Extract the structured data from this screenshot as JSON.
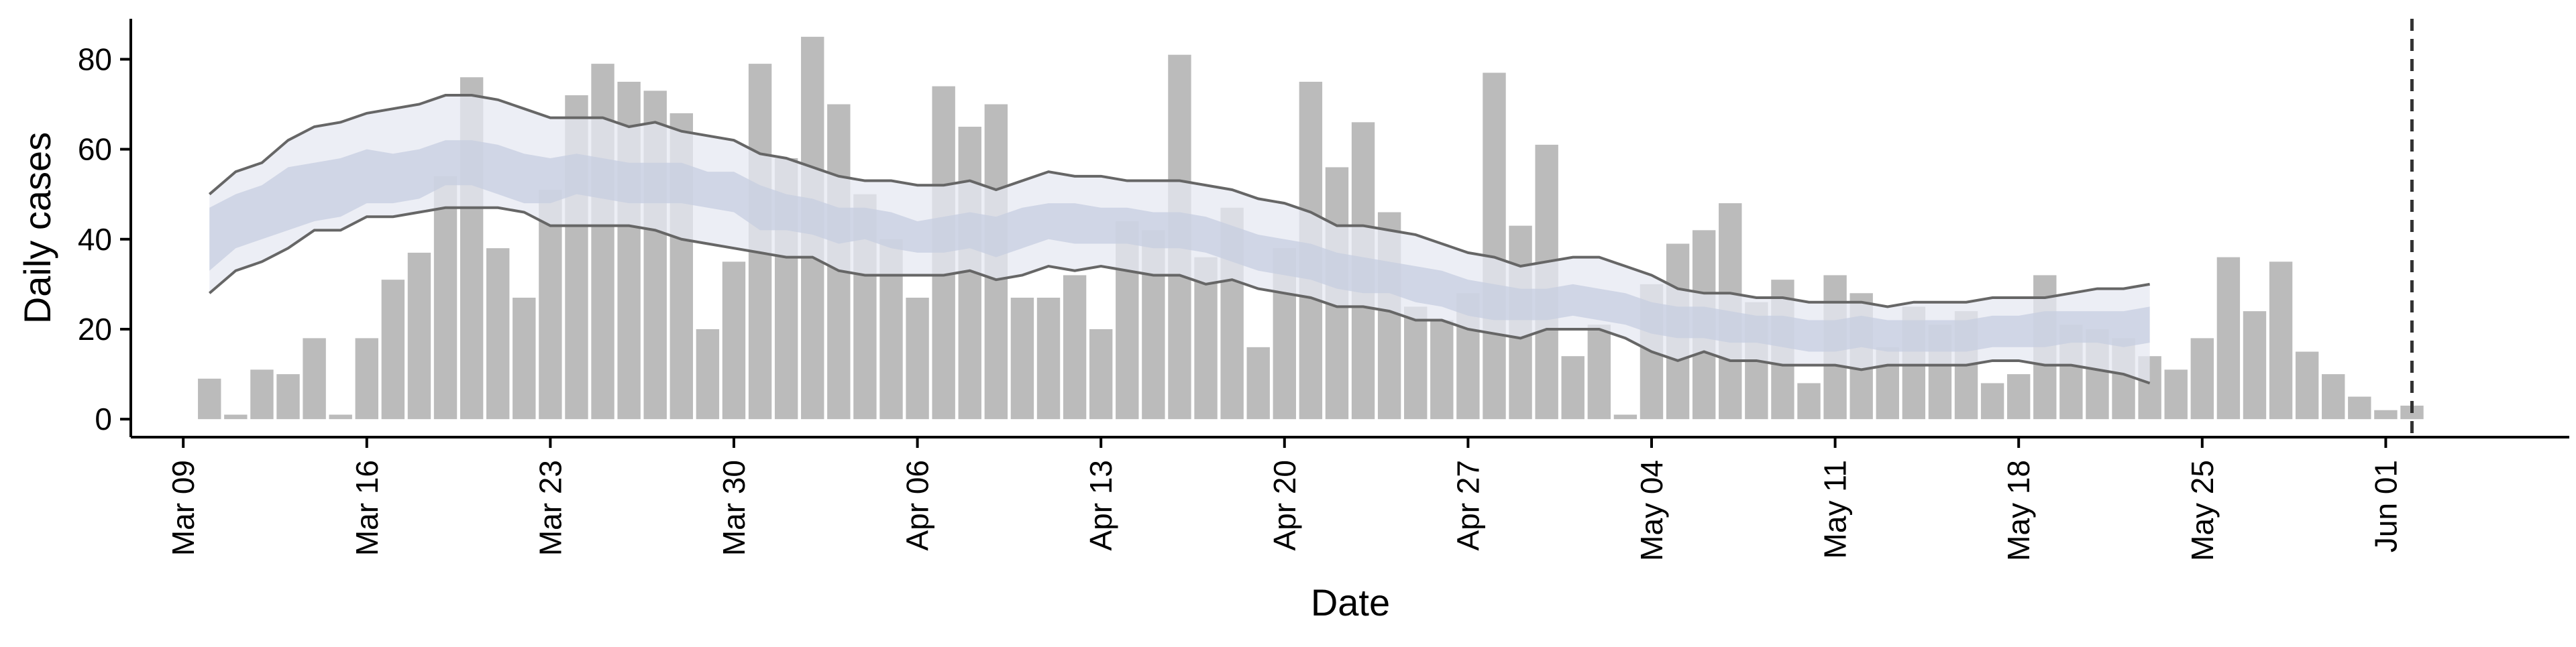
{
  "chart_data": {
    "type": "bar",
    "xlabel": "Date",
    "ylabel": "Daily cases",
    "ylim": [
      -4,
      89
    ],
    "xlim": [
      "2020-03-07",
      "2020-06-08"
    ],
    "y_ticks": [
      0,
      20,
      40,
      60,
      80
    ],
    "x_ticks": [
      {
        "date": "2020-03-09",
        "label": "Mar 09"
      },
      {
        "date": "2020-03-16",
        "label": "Mar 16"
      },
      {
        "date": "2020-03-23",
        "label": "Mar 23"
      },
      {
        "date": "2020-03-30",
        "label": "Mar 30"
      },
      {
        "date": "2020-04-06",
        "label": "Apr 06"
      },
      {
        "date": "2020-04-13",
        "label": "Apr 13"
      },
      {
        "date": "2020-04-20",
        "label": "Apr 20"
      },
      {
        "date": "2020-04-27",
        "label": "Apr 27"
      },
      {
        "date": "2020-05-04",
        "label": "May 04"
      },
      {
        "date": "2020-05-11",
        "label": "May 11"
      },
      {
        "date": "2020-05-18",
        "label": "May 18"
      },
      {
        "date": "2020-05-25",
        "label": "May 25"
      },
      {
        "date": "2020-06-01",
        "label": "Jun 01"
      }
    ],
    "bars": {
      "dates": [
        "2020-03-10",
        "2020-03-11",
        "2020-03-12",
        "2020-03-13",
        "2020-03-14",
        "2020-03-15",
        "2020-03-16",
        "2020-03-17",
        "2020-03-18",
        "2020-03-19",
        "2020-03-20",
        "2020-03-21",
        "2020-03-22",
        "2020-03-23",
        "2020-03-24",
        "2020-03-25",
        "2020-03-26",
        "2020-03-27",
        "2020-03-28",
        "2020-03-29",
        "2020-03-30",
        "2020-03-31",
        "2020-04-01",
        "2020-04-02",
        "2020-04-03",
        "2020-04-04",
        "2020-04-05",
        "2020-04-06",
        "2020-04-07",
        "2020-04-08",
        "2020-04-09",
        "2020-04-10",
        "2020-04-11",
        "2020-04-12",
        "2020-04-13",
        "2020-04-14",
        "2020-04-15",
        "2020-04-16",
        "2020-04-17",
        "2020-04-18",
        "2020-04-19",
        "2020-04-20",
        "2020-04-21",
        "2020-04-22",
        "2020-04-23",
        "2020-04-24",
        "2020-04-25",
        "2020-04-26",
        "2020-04-27",
        "2020-04-28",
        "2020-04-29",
        "2020-04-30",
        "2020-05-01",
        "2020-05-02",
        "2020-05-03",
        "2020-05-04",
        "2020-05-05",
        "2020-05-06",
        "2020-05-07",
        "2020-05-08",
        "2020-05-09",
        "2020-05-10",
        "2020-05-11",
        "2020-05-12",
        "2020-05-13",
        "2020-05-14",
        "2020-05-15",
        "2020-05-16",
        "2020-05-17",
        "2020-05-18",
        "2020-05-19",
        "2020-05-20",
        "2020-05-21",
        "2020-05-22",
        "2020-05-23",
        "2020-05-24",
        "2020-05-25",
        "2020-05-26",
        "2020-05-27",
        "2020-05-28",
        "2020-05-29",
        "2020-05-30",
        "2020-05-31",
        "2020-06-01",
        "2020-06-02"
      ],
      "values": [
        9,
        1,
        11,
        10,
        18,
        1,
        18,
        31,
        37,
        54,
        76,
        38,
        27,
        51,
        72,
        79,
        75,
        73,
        68,
        20,
        35,
        79,
        58,
        85,
        70,
        50,
        40,
        27,
        74,
        65,
        70,
        27,
        27,
        32,
        20,
        44,
        42,
        81,
        36,
        47,
        16,
        38,
        75,
        56,
        66,
        46,
        25,
        22,
        28,
        77,
        43,
        61,
        14,
        21,
        1,
        30,
        39,
        42,
        48,
        26,
        31,
        8,
        32,
        28,
        16,
        25,
        21,
        24,
        8,
        10,
        32,
        21,
        20,
        18,
        14,
        11,
        18,
        36,
        24,
        35,
        15,
        10,
        5,
        2,
        3
      ],
      "color": "#bbbbbb"
    },
    "series": [
      {
        "dates": [
          "2020-03-10",
          "2020-03-11",
          "2020-03-12",
          "2020-03-13",
          "2020-03-14",
          "2020-03-15",
          "2020-03-16",
          "2020-03-17",
          "2020-03-18",
          "2020-03-19",
          "2020-03-20",
          "2020-03-21",
          "2020-03-22",
          "2020-03-23",
          "2020-03-24",
          "2020-03-25",
          "2020-03-26",
          "2020-03-27",
          "2020-03-28",
          "2020-03-29",
          "2020-03-30",
          "2020-03-31",
          "2020-04-01",
          "2020-04-02",
          "2020-04-03",
          "2020-04-04",
          "2020-04-05",
          "2020-04-06",
          "2020-04-07",
          "2020-04-08",
          "2020-04-09",
          "2020-04-10",
          "2020-04-11",
          "2020-04-12",
          "2020-04-13",
          "2020-04-14",
          "2020-04-15",
          "2020-04-16",
          "2020-04-17",
          "2020-04-18",
          "2020-04-19",
          "2020-04-20",
          "2020-04-21",
          "2020-04-22",
          "2020-04-23",
          "2020-04-24",
          "2020-04-25",
          "2020-04-26",
          "2020-04-27",
          "2020-04-28",
          "2020-04-29",
          "2020-04-30",
          "2020-05-01",
          "2020-05-02",
          "2020-05-03",
          "2020-05-04",
          "2020-05-05",
          "2020-05-06",
          "2020-05-07",
          "2020-05-08",
          "2020-05-09",
          "2020-05-10",
          "2020-05-11",
          "2020-05-12",
          "2020-05-13",
          "2020-05-14",
          "2020-05-15",
          "2020-05-16",
          "2020-05-17",
          "2020-05-18",
          "2020-05-19",
          "2020-05-20",
          "2020-05-21",
          "2020-05-22",
          "2020-05-23"
        ],
        "outer_upper": [
          50,
          55,
          57,
          62,
          65,
          66,
          68,
          69,
          70,
          72,
          72,
          71,
          69,
          67,
          67,
          67,
          65,
          66,
          64,
          63,
          62,
          59,
          58,
          56,
          54,
          53,
          53,
          52,
          52,
          53,
          51,
          53,
          55,
          54,
          54,
          53,
          53,
          53,
          52,
          51,
          49,
          48,
          46,
          43,
          43,
          42,
          41,
          39,
          37,
          36,
          34,
          35,
          36,
          36,
          34,
          32,
          29,
          28,
          28,
          27,
          27,
          26,
          26,
          26,
          25,
          26,
          26,
          26,
          27,
          27,
          27,
          28,
          29,
          29,
          30
        ],
        "outer_lower": [
          28,
          33,
          35,
          38,
          42,
          42,
          45,
          45,
          46,
          47,
          47,
          47,
          46,
          43,
          43,
          43,
          43,
          42,
          40,
          39,
          38,
          37,
          36,
          36,
          33,
          32,
          32,
          32,
          32,
          33,
          31,
          32,
          34,
          33,
          34,
          33,
          32,
          32,
          30,
          31,
          29,
          28,
          27,
          25,
          25,
          24,
          22,
          22,
          20,
          19,
          18,
          20,
          20,
          20,
          18,
          15,
          13,
          15,
          13,
          13,
          12,
          12,
          12,
          11,
          12,
          12,
          12,
          12,
          13,
          13,
          12,
          12,
          11,
          10,
          8
        ],
        "inner_upper": [
          47,
          50,
          52,
          56,
          57,
          58,
          60,
          59,
          60,
          62,
          62,
          61,
          59,
          58,
          59,
          58,
          57,
          57,
          57,
          55,
          55,
          52,
          50,
          49,
          47,
          47,
          46,
          44,
          45,
          46,
          45,
          47,
          48,
          48,
          47,
          47,
          46,
          46,
          45,
          43,
          41,
          40,
          39,
          37,
          36,
          35,
          34,
          33,
          31,
          30,
          29,
          29,
          30,
          29,
          28,
          26,
          25,
          25,
          24,
          23,
          23,
          22,
          22,
          23,
          22,
          22,
          22,
          22,
          23,
          23,
          24,
          24,
          24,
          24,
          25
        ],
        "inner_lower": [
          33,
          38,
          40,
          42,
          44,
          45,
          48,
          48,
          49,
          52,
          52,
          50,
          48,
          48,
          50,
          49,
          48,
          48,
          48,
          47,
          46,
          42,
          42,
          41,
          39,
          40,
          38,
          37,
          37,
          38,
          36,
          38,
          40,
          39,
          39,
          39,
          38,
          38,
          37,
          35,
          33,
          32,
          31,
          29,
          28,
          28,
          26,
          25,
          23,
          22,
          22,
          22,
          23,
          22,
          21,
          19,
          18,
          18,
          17,
          17,
          16,
          15,
          15,
          16,
          15,
          15,
          15,
          15,
          16,
          16,
          16,
          17,
          17,
          16,
          17
        ],
        "outer_color": "#e6e8f1",
        "inner_color": "#c7cde0",
        "line_color": "#666666"
      }
    ],
    "vline": {
      "date": "2020-06-02",
      "style": "dashed",
      "color": "#333333"
    },
    "grid": false,
    "legend": "none"
  }
}
